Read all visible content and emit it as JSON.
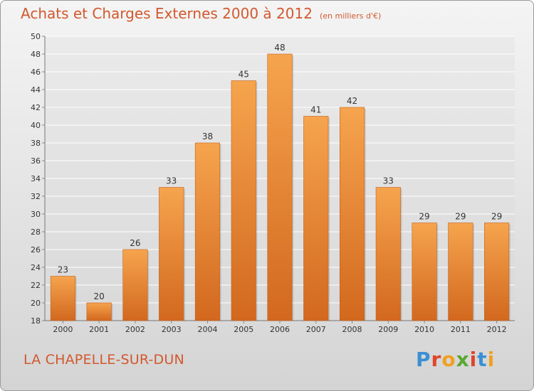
{
  "header": {
    "title": "Achats et Charges Externes 2000 à 2012",
    "unit": "(en milliers d'€)"
  },
  "footer": {
    "commune": "LA CHAPELLE-SUR-DUN",
    "logo_text": "Proxiti",
    "logo_colors": [
      "#3b8fd4",
      "#e0452b",
      "#f0a020",
      "#5aa832",
      "#e0452b",
      "#3b8fd4",
      "#f0a020"
    ]
  },
  "colors": {
    "accent": "#d2582e",
    "bar_top": "#f6a44e",
    "bar_bottom": "#d2681e"
  },
  "chart_data": {
    "type": "bar",
    "categories": [
      "2000",
      "2001",
      "2002",
      "2003",
      "2004",
      "2005",
      "2006",
      "2007",
      "2008",
      "2009",
      "2010",
      "2011",
      "2012"
    ],
    "values": [
      23,
      20,
      26,
      33,
      38,
      45,
      48,
      41,
      42,
      33,
      29,
      29,
      29
    ],
    "ylim": [
      18,
      50
    ],
    "yticks": [
      18,
      20,
      22,
      24,
      26,
      28,
      30,
      32,
      34,
      36,
      38,
      40,
      42,
      44,
      46,
      48,
      50
    ],
    "grid": true,
    "legend": "none"
  }
}
